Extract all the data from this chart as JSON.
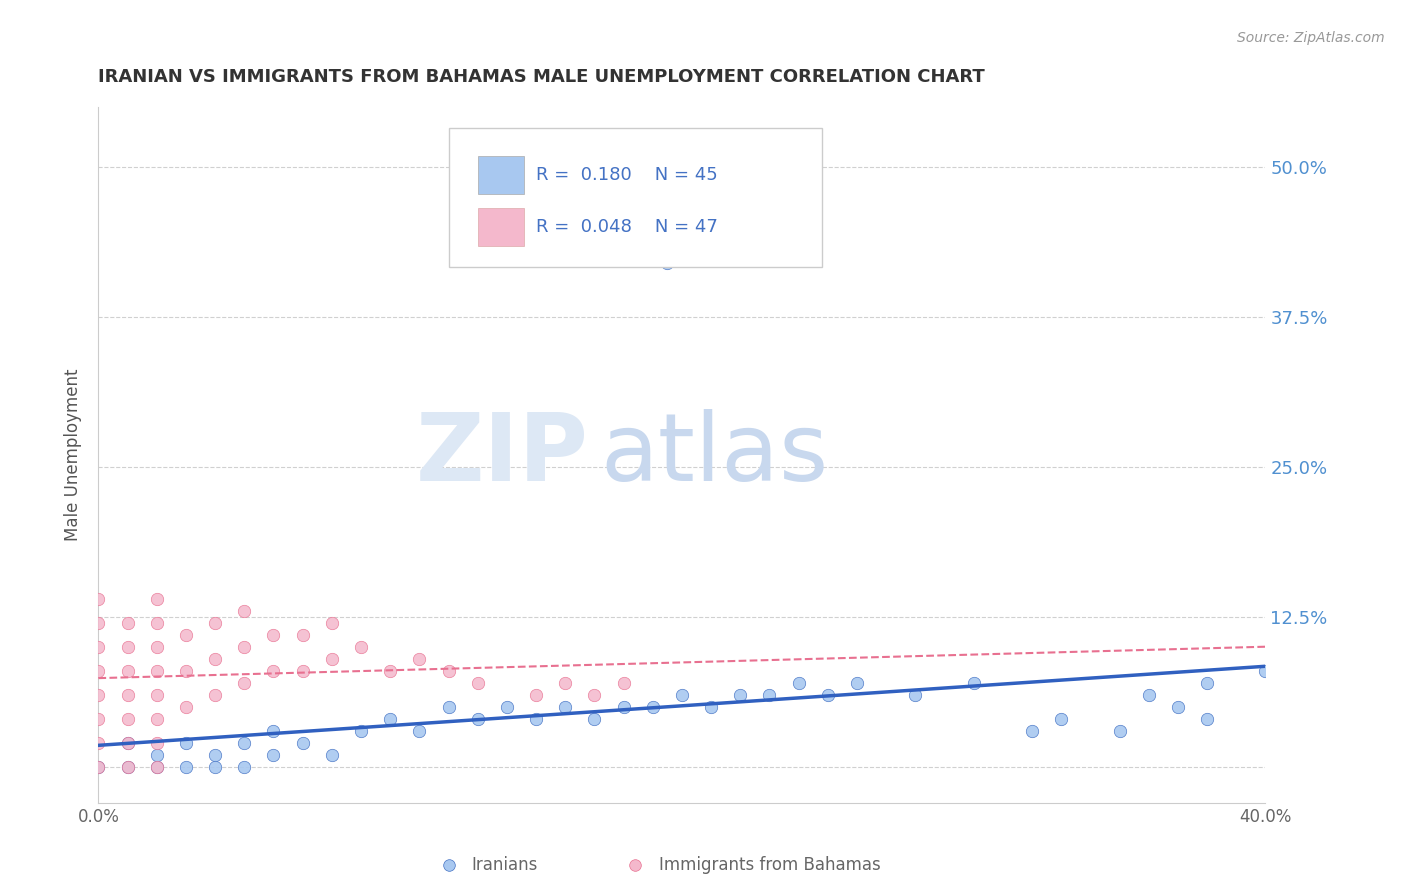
{
  "title": "IRANIAN VS IMMIGRANTS FROM BAHAMAS MALE UNEMPLOYMENT CORRELATION CHART",
  "source": "Source: ZipAtlas.com",
  "ylabel": "Male Unemployment",
  "xlim": [
    0.0,
    0.4
  ],
  "ylim": [
    -0.03,
    0.55
  ],
  "yticks": [
    0.0,
    0.125,
    0.25,
    0.375,
    0.5
  ],
  "ytick_labels": [
    "",
    "12.5%",
    "25.0%",
    "37.5%",
    "50.0%"
  ],
  "xtick_labels": [
    "0.0%",
    "40.0%"
  ],
  "xtick_vals": [
    0.0,
    0.4
  ],
  "iranians_x": [
    0.0,
    0.01,
    0.01,
    0.02,
    0.02,
    0.03,
    0.03,
    0.04,
    0.04,
    0.05,
    0.05,
    0.06,
    0.06,
    0.07,
    0.08,
    0.09,
    0.1,
    0.11,
    0.12,
    0.13,
    0.14,
    0.15,
    0.16,
    0.17,
    0.18,
    0.19,
    0.2,
    0.21,
    0.22,
    0.23,
    0.24,
    0.25,
    0.26,
    0.28,
    0.3,
    0.32,
    0.33,
    0.35,
    0.37,
    0.38,
    0.4,
    0.41,
    0.38,
    0.36,
    0.195
  ],
  "iranians_y": [
    0.0,
    0.0,
    0.02,
    0.0,
    0.01,
    0.0,
    0.02,
    0.01,
    0.0,
    0.02,
    0.0,
    0.01,
    0.03,
    0.02,
    0.01,
    0.03,
    0.04,
    0.03,
    0.05,
    0.04,
    0.05,
    0.04,
    0.05,
    0.04,
    0.05,
    0.05,
    0.06,
    0.05,
    0.06,
    0.06,
    0.07,
    0.06,
    0.07,
    0.06,
    0.07,
    0.03,
    0.04,
    0.03,
    0.05,
    0.04,
    0.08,
    0.09,
    0.07,
    0.06,
    0.42
  ],
  "bahamas_x": [
    0.0,
    0.0,
    0.0,
    0.0,
    0.0,
    0.0,
    0.0,
    0.0,
    0.01,
    0.01,
    0.01,
    0.01,
    0.01,
    0.01,
    0.01,
    0.02,
    0.02,
    0.02,
    0.02,
    0.02,
    0.02,
    0.02,
    0.02,
    0.03,
    0.03,
    0.03,
    0.04,
    0.04,
    0.04,
    0.05,
    0.05,
    0.05,
    0.06,
    0.06,
    0.07,
    0.07,
    0.08,
    0.08,
    0.09,
    0.1,
    0.11,
    0.12,
    0.13,
    0.15,
    0.16,
    0.17,
    0.18
  ],
  "bahamas_y": [
    0.0,
    0.02,
    0.04,
    0.06,
    0.08,
    0.1,
    0.12,
    0.14,
    0.0,
    0.02,
    0.04,
    0.06,
    0.08,
    0.1,
    0.12,
    0.0,
    0.02,
    0.04,
    0.06,
    0.08,
    0.1,
    0.12,
    0.14,
    0.05,
    0.08,
    0.11,
    0.06,
    0.09,
    0.12,
    0.07,
    0.1,
    0.13,
    0.08,
    0.11,
    0.08,
    0.11,
    0.09,
    0.12,
    0.1,
    0.08,
    0.09,
    0.08,
    0.07,
    0.06,
    0.07,
    0.06,
    0.07
  ],
  "iran_trend": [
    0.01,
    0.13
  ],
  "bah_trend_start": 0.075,
  "bah_trend_end": 0.082,
  "legend_R_blue": "R = ",
  "legend_R_val_iran": "0.180",
  "legend_N_iran": "N = 45",
  "legend_R_val_bah": "0.048",
  "legend_N_bah": "N = 47",
  "blue_color": "#a8c8f0",
  "blue_dark": "#4472c4",
  "pink_color": "#f4b8cc",
  "pink_dark": "#e87090",
  "trend_blue": "#3060c0",
  "trend_pink": "#e87090",
  "grid_color": "#d0d0d0",
  "right_label_color": "#5090d0",
  "title_color": "#333333",
  "background_color": "#ffffff",
  "legend_text_color": "#4472c4",
  "watermark_zip_color": "#dde8f5",
  "watermark_atlas_color": "#c8d8ee"
}
